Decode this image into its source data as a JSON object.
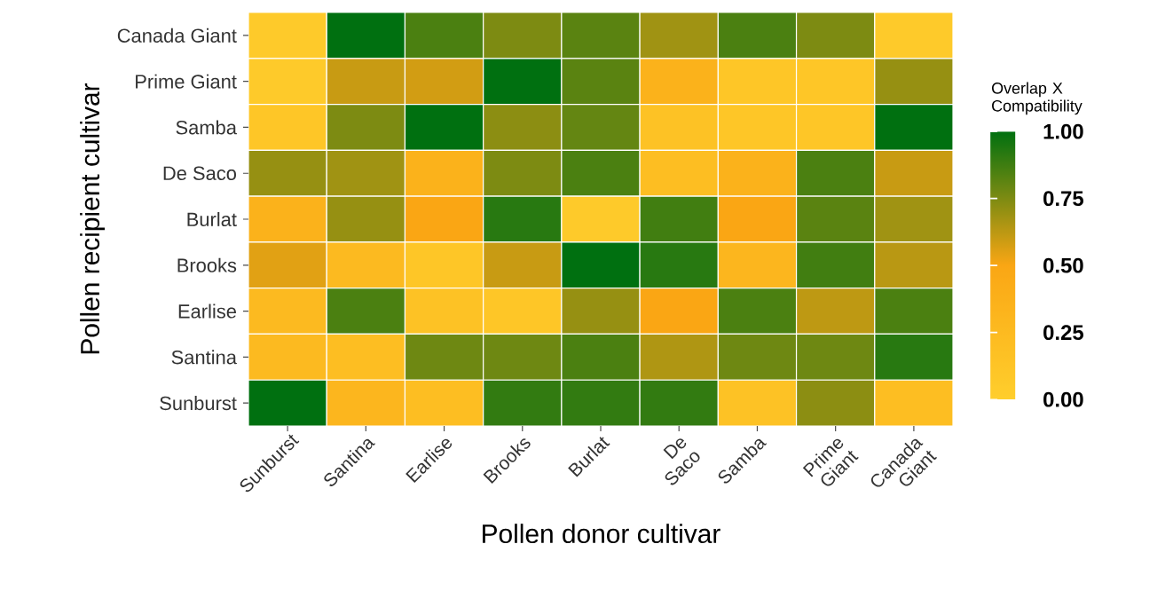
{
  "chart_data": {
    "type": "heatmap",
    "xlabel": "Pollen donor cultivar",
    "ylabel": "Pollen recipient cultivar",
    "clabel": "Overlap X Compatibility",
    "categories": [
      "Sunburst",
      "Santina",
      "Earlise",
      "Brooks",
      "Burlat",
      "De Saco",
      "Samba",
      "Prime Giant",
      "Canada Giant"
    ],
    "y_categories": [
      "Canada Giant",
      "Prime Giant",
      "Samba",
      "De Saco",
      "Burlat",
      "Brooks",
      "Earlise",
      "Santina",
      "Sunburst"
    ],
    "cells": [
      [
        0.05,
        1.0,
        0.85,
        0.75,
        0.82,
        0.68,
        0.85,
        0.75,
        0.05
      ],
      [
        0.05,
        0.6,
        0.58,
        1.0,
        0.82,
        0.35,
        0.1,
        0.1,
        0.7
      ],
      [
        0.1,
        0.75,
        1.0,
        0.72,
        0.8,
        0.15,
        0.1,
        0.1,
        1.0
      ],
      [
        0.7,
        0.68,
        0.35,
        0.75,
        0.85,
        0.2,
        0.35,
        0.85,
        0.6
      ],
      [
        0.35,
        0.7,
        0.5,
        0.92,
        0.05,
        0.87,
        0.5,
        0.82,
        0.68
      ],
      [
        0.55,
        0.25,
        0.1,
        0.6,
        1.0,
        0.92,
        0.3,
        0.87,
        0.63
      ],
      [
        0.25,
        0.85,
        0.15,
        0.1,
        0.7,
        0.5,
        0.85,
        0.62,
        0.85
      ],
      [
        0.25,
        0.2,
        0.78,
        0.78,
        0.85,
        0.65,
        0.78,
        0.78,
        0.92
      ],
      [
        1.0,
        0.3,
        0.2,
        0.9,
        0.9,
        0.9,
        0.15,
        0.72,
        0.2
      ]
    ],
    "clim": [
      0,
      1
    ],
    "cticks": [
      {
        "value": 0,
        "label": "0.00"
      },
      {
        "value": 0.25,
        "label": "0.25"
      },
      {
        "value": 0.5,
        "label": "0.50"
      },
      {
        "value": 0.75,
        "label": "0.75"
      },
      {
        "value": 1,
        "label": "1.00"
      }
    ]
  }
}
